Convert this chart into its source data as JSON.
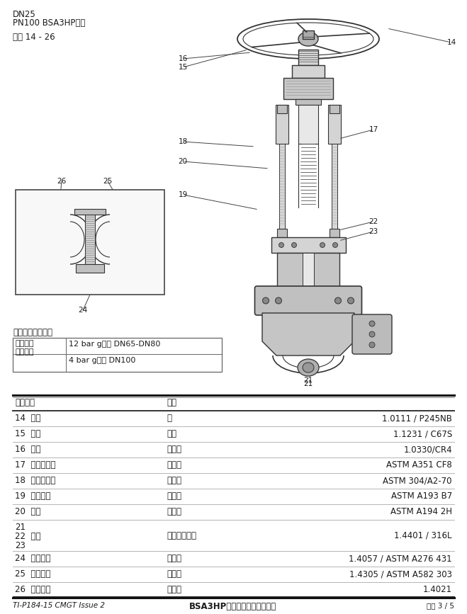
{
  "page_title_line1": "DN25",
  "page_title_line2": "PN100 BSA3HP图示",
  "page_subtitle": "部件 14 - 26",
  "optional_section_title": "可选平衡阀芯组件",
  "optional_col1_line1": "超过此范",
  "optional_col1_line2": "围时选用",
  "optional_row1": "12 bar g压差 DN65-DN80",
  "optional_row2": "4 bar g压差 DN100",
  "table_header_col1": "序号部件",
  "table_header_col2": "材质",
  "table_rows": [
    [
      "14  手轮",
      "锢",
      "1.0111 / P245NB"
    ],
    [
      "15  卡黏",
      "碳锢",
      "1.1231 / C67S"
    ],
    [
      "16  塔头",
      "低碳锢",
      "1.0330/CR4"
    ],
    [
      "17  阀杆连接器",
      "不锈锢",
      "ASTM A351 CF8"
    ],
    [
      "18  内六角螺丝",
      "不锈锢",
      "ASTM 304/A2-70"
    ],
    [
      "19  双头螺柱",
      "合金锢",
      "ASTM A193 B7"
    ],
    [
      "20  螺母",
      "合金锢",
      "ASTM A194 2H"
    ],
    [
      "21_22_23",
      "石墨和不锈锢",
      "1.4401 / 316L"
    ],
    [
      "24  阀杆塔头",
      "不锈锢",
      "1.4057 / ASTM A276 431"
    ],
    [
      "25  止动螺母",
      "不锈锢",
      "1.4305 / ASTM A582 303"
    ],
    [
      "26  平衡阀芯",
      "不锈锢",
      "1.4021"
    ]
  ],
  "row21_line1": "21",
  "row22_line": "22  废片",
  "row23_line": "23",
  "footer_left": "TI-P184-15 CMGT Issue 2",
  "footer_center": "BSA3HP波纹管密封高压截止阀",
  "footer_right": "页码 3 / 5",
  "bg_color": "#ffffff",
  "text_color": "#1a1a1a",
  "line_color": "#333333",
  "gray_fill": "#d4d4d4",
  "light_gray": "#e8e8e8",
  "mid_gray": "#c0c0c0"
}
